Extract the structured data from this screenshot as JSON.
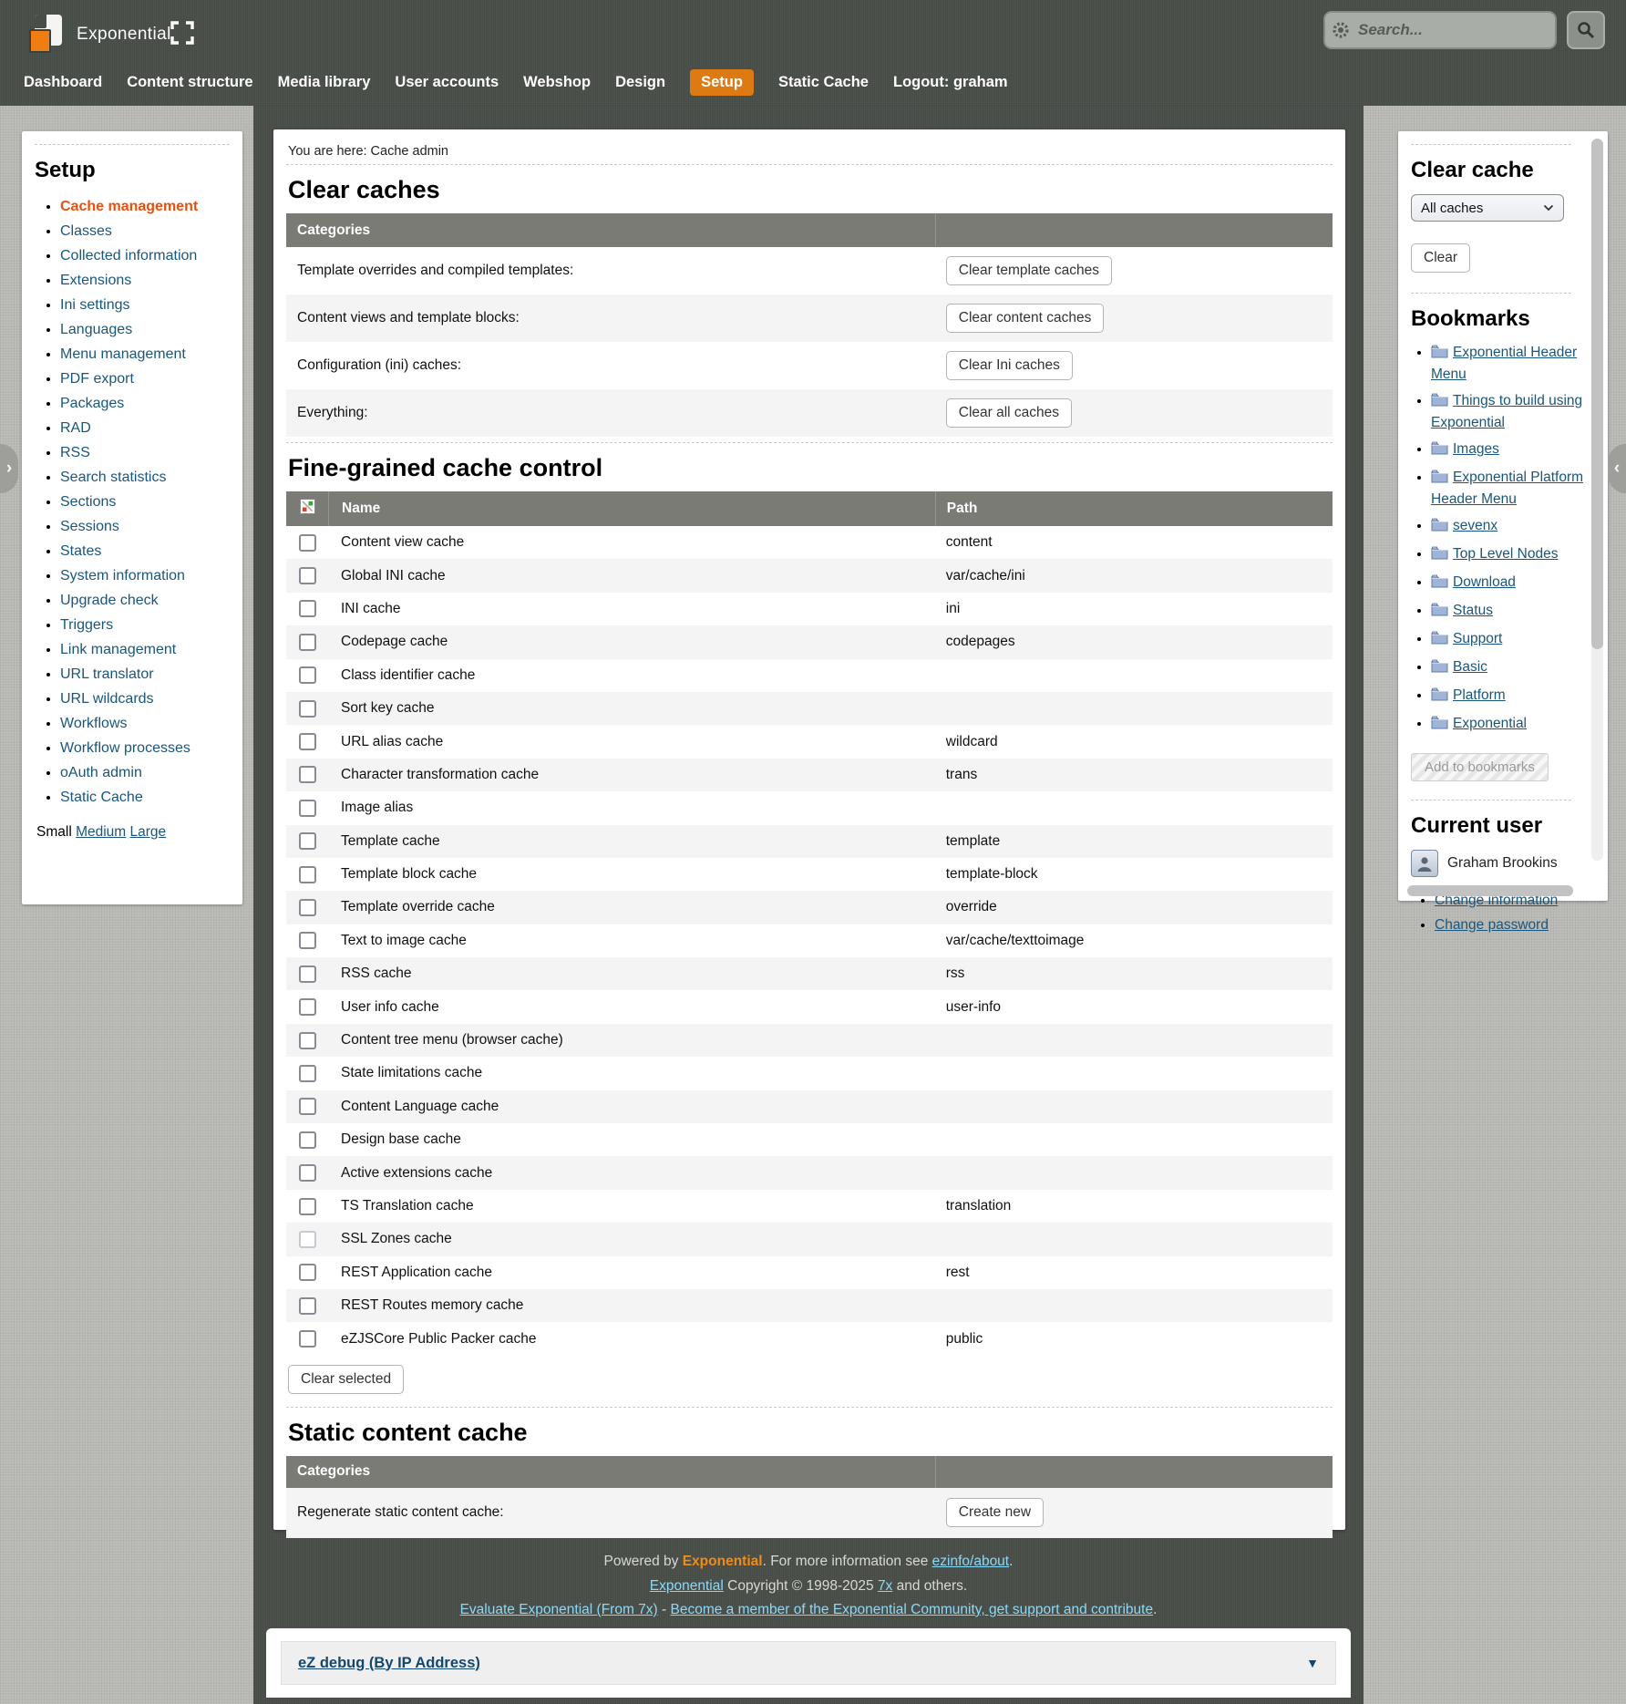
{
  "topbar": {
    "brand": "Exponential",
    "search": {
      "placeholder": "Search..."
    },
    "nav": [
      {
        "label": "Dashboard",
        "active": false
      },
      {
        "label": "Content structure",
        "active": false
      },
      {
        "label": "Media library",
        "active": false
      },
      {
        "label": "User accounts",
        "active": false
      },
      {
        "label": "Webshop",
        "active": false
      },
      {
        "label": "Design",
        "active": false
      },
      {
        "label": "Setup",
        "active": true
      },
      {
        "label": "Static Cache",
        "active": false
      },
      {
        "label": "Logout: graham",
        "active": false
      }
    ]
  },
  "sidebar": {
    "title": "Setup",
    "items": [
      {
        "label": "Cache management",
        "active": true
      },
      {
        "label": "Classes",
        "active": false
      },
      {
        "label": "Collected information",
        "active": false
      },
      {
        "label": "Extensions",
        "active": false
      },
      {
        "label": "Ini settings",
        "active": false
      },
      {
        "label": "Languages",
        "active": false
      },
      {
        "label": "Menu management",
        "active": false
      },
      {
        "label": "PDF export",
        "active": false
      },
      {
        "label": "Packages",
        "active": false
      },
      {
        "label": "RAD",
        "active": false
      },
      {
        "label": "RSS",
        "active": false
      },
      {
        "label": "Search statistics",
        "active": false
      },
      {
        "label": "Sections",
        "active": false
      },
      {
        "label": "Sessions",
        "active": false
      },
      {
        "label": "States",
        "active": false
      },
      {
        "label": "System information",
        "active": false
      },
      {
        "label": "Upgrade check",
        "active": false
      },
      {
        "label": "Triggers",
        "active": false
      },
      {
        "label": "Link management",
        "active": false
      },
      {
        "label": "URL translator",
        "active": false
      },
      {
        "label": "URL wildcards",
        "active": false
      },
      {
        "label": "Workflows",
        "active": false
      },
      {
        "label": "Workflow processes",
        "active": false
      },
      {
        "label": "oAuth admin",
        "active": false
      },
      {
        "label": "Static Cache",
        "active": false
      }
    ],
    "sizes": {
      "current": "Small",
      "links": [
        "Medium",
        "Large"
      ]
    }
  },
  "main": {
    "breadcrumb": "You are here: Cache admin",
    "clear_caches": {
      "title": "Clear caches",
      "header": "Categories",
      "rows": [
        {
          "label": "Template overrides and compiled templates:",
          "button": "Clear template caches"
        },
        {
          "label": "Content views and template blocks:",
          "button": "Clear content caches"
        },
        {
          "label": "Configuration (ini) caches:",
          "button": "Clear Ini caches"
        },
        {
          "label": "Everything:",
          "button": "Clear all caches"
        }
      ]
    },
    "fine_grained": {
      "title": "Fine-grained cache control",
      "columns": {
        "name": "Name",
        "path": "Path"
      },
      "rows": [
        {
          "name": "Content view cache",
          "path": "content",
          "disabled": false
        },
        {
          "name": "Global INI cache",
          "path": "var/cache/ini",
          "disabled": false
        },
        {
          "name": "INI cache",
          "path": "ini",
          "disabled": false
        },
        {
          "name": "Codepage cache",
          "path": "codepages",
          "disabled": false
        },
        {
          "name": "Class identifier cache",
          "path": "",
          "disabled": false
        },
        {
          "name": "Sort key cache",
          "path": "",
          "disabled": false
        },
        {
          "name": "URL alias cache",
          "path": "wildcard",
          "disabled": false
        },
        {
          "name": "Character transformation cache",
          "path": "trans",
          "disabled": false
        },
        {
          "name": "Image alias",
          "path": "",
          "disabled": false
        },
        {
          "name": "Template cache",
          "path": "template",
          "disabled": false
        },
        {
          "name": "Template block cache",
          "path": "template-block",
          "disabled": false
        },
        {
          "name": "Template override cache",
          "path": "override",
          "disabled": false
        },
        {
          "name": "Text to image cache",
          "path": "var/cache/texttoimage",
          "disabled": false
        },
        {
          "name": "RSS cache",
          "path": "rss",
          "disabled": false
        },
        {
          "name": "User info cache",
          "path": "user-info",
          "disabled": false
        },
        {
          "name": "Content tree menu (browser cache)",
          "path": "",
          "disabled": false
        },
        {
          "name": "State limitations cache",
          "path": "",
          "disabled": false
        },
        {
          "name": "Content Language cache",
          "path": "",
          "disabled": false
        },
        {
          "name": "Design base cache",
          "path": "",
          "disabled": false
        },
        {
          "name": "Active extensions cache",
          "path": "",
          "disabled": false
        },
        {
          "name": "TS Translation cache",
          "path": "translation",
          "disabled": false
        },
        {
          "name": "SSL Zones cache",
          "path": "",
          "disabled": true
        },
        {
          "name": "REST Application cache",
          "path": "rest",
          "disabled": false
        },
        {
          "name": "REST Routes memory cache",
          "path": "",
          "disabled": false
        },
        {
          "name": "eZJSCore Public Packer cache",
          "path": "public",
          "disabled": false
        }
      ],
      "clear_selected_button": "Clear selected"
    },
    "static_cache": {
      "title": "Static content cache",
      "header": "Categories",
      "rows": [
        {
          "label": "Regenerate static content cache:",
          "button": "Create new"
        }
      ]
    }
  },
  "right_panel": {
    "clear_cache": {
      "title": "Clear cache",
      "select_value": "All caches",
      "button": "Clear"
    },
    "bookmarks": {
      "title": "Bookmarks",
      "items": [
        "Exponential Header Menu",
        "Things to build using Exponential",
        "Images",
        "Exponential Platform Header Menu",
        "sevenx",
        "Top Level Nodes",
        "Download",
        "Status",
        "Support",
        "Basic",
        "Platform",
        "Exponential"
      ],
      "add_button": "Add to bookmarks"
    },
    "current_user": {
      "title": "Current user",
      "name": "Graham Brookins",
      "links": [
        "Change information",
        "Change password"
      ]
    }
  },
  "footer": {
    "powered_prefix": "Powered by",
    "brand": "Exponential",
    "powered_mid": ". For more information see",
    "info_link": "ezinfo/about",
    "period": ".",
    "copyright_link": "Exponential",
    "copyright_text": "Copyright © 1998-2025",
    "copyright_link2": "7x",
    "copyright_suffix": "and others.",
    "evaluate_link": "Evaluate Exponential (From 7x)",
    "separator": "-",
    "community_link": "Become a member of the Exponential Community, get support and contribute",
    "community_period": "."
  },
  "debug": {
    "title": "eZ debug (By IP Address)",
    "toggle": "▼"
  }
}
